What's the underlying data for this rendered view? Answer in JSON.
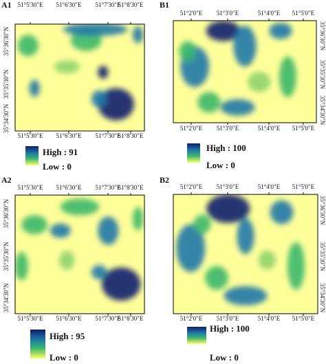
{
  "panels": [
    {
      "label": "A1",
      "top_ticks": [
        "51°5'30\"E",
        "51°6'30\"E",
        "51°7'30\"E",
        "51°8'30\"E"
      ],
      "bottom_ticks": [
        "51°5'30\"E",
        "51°6'30\"E",
        "51°7'30\"E",
        "51°8'30\"E"
      ],
      "lat_ticks": [
        "35°36'30\"N",
        "35°35'30\"N",
        "35°34'30\"N"
      ],
      "legend_high": "High : 91",
      "legend_low": "Low : 0"
    },
    {
      "label": "B1",
      "top_ticks": [
        "51°2'0\"E",
        "51°3'0\"E",
        "51°4'0\"E",
        "51°5'0\"E"
      ],
      "bottom_ticks": [
        "51°2'0\"E",
        "51°3'0\"E",
        "51°4'0\"E",
        "51°5'0\"E"
      ],
      "lat_ticks": [
        "35°36'30\"N",
        "35°35'30\"N",
        "35°34'30\"N"
      ],
      "legend_high": "High : 100",
      "legend_low": "Low : 0"
    },
    {
      "label": "A2",
      "top_ticks": [
        "51°5'30\"E",
        "51°6'30\"E",
        "51°7'30\"E",
        "51°8'30\"E"
      ],
      "bottom_ticks": [
        "51°5'30\"E",
        "51°6'30\"E",
        "51°7'30\"E",
        "51°8'30\"E"
      ],
      "lat_ticks": [
        "35°36'30\"N",
        "35°35'30\"N",
        "35°34'30\"N"
      ],
      "legend_high": "High : 95",
      "legend_low": "Low : 0"
    },
    {
      "label": "B2",
      "top_ticks": [
        "51°2'0\"E",
        "51°3'0\"E",
        "51°4'0\"E",
        "51°5'0\"E"
      ],
      "bottom_ticks": [
        "51°2'0\"E",
        "51°3'0\"E",
        "51°4'0\"E",
        "51°5'0\"E"
      ],
      "lat_ticks": [
        "35°36'30\"N",
        "35°35'30\"N",
        "35°34'30\"N"
      ],
      "legend_high": "High : 100",
      "legend_low": "Low : 0"
    }
  ]
}
